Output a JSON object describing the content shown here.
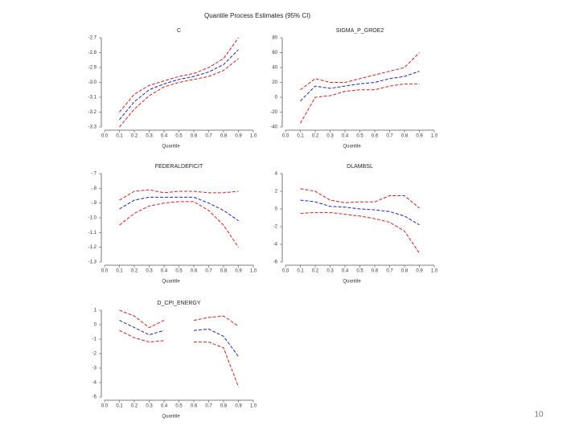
{
  "title": "Quantile Process Estimates (95% CI)",
  "page_number": "10",
  "chart_data": [
    {
      "type": "line",
      "title": "C",
      "xlabel": "Quantile",
      "x": [
        0.1,
        0.2,
        0.3,
        0.4,
        0.5,
        0.6,
        0.7,
        0.8,
        0.9
      ],
      "xlim": [
        0,
        1
      ],
      "xticks": [
        {
          "value": 0,
          "label": "0.0"
        },
        0.1,
        0.2,
        0.3,
        0.4,
        0.5,
        0.6,
        0.7,
        0.8,
        0.9,
        {
          "value": 1,
          "label": "1.0"
        }
      ],
      "ylim": [
        -3.3,
        -2.7
      ],
      "yticks": [
        -3.3,
        -3.2,
        -3.1,
        {
          "value": -3.0,
          "label": "-3.0"
        },
        -2.9,
        -2.8,
        -2.7
      ],
      "series": [
        {
          "color": "#d02020",
          "values": [
            -3.2,
            -3.08,
            -3.02,
            -2.99,
            -2.96,
            -2.94,
            -2.9,
            -2.84,
            -2.7
          ]
        },
        {
          "color": "#2020c0",
          "values": [
            -3.25,
            -3.13,
            -3.05,
            -3.01,
            -2.98,
            -2.96,
            -2.93,
            -2.88,
            -2.78
          ]
        },
        {
          "color": "#d02020",
          "values": [
            -3.3,
            -3.18,
            -3.09,
            -3.03,
            -3.0,
            -2.98,
            -2.96,
            -2.92,
            -2.84
          ]
        }
      ]
    },
    {
      "type": "line",
      "title": "SIGMA_P_GROE2",
      "xlabel": "Quantile",
      "x": [
        0.1,
        0.2,
        0.3,
        0.4,
        0.5,
        0.6,
        0.7,
        0.8,
        0.9
      ],
      "xlim": [
        0,
        1
      ],
      "xticks": [
        {
          "value": 0,
          "label": "0.0"
        },
        0.1,
        0.2,
        0.3,
        0.4,
        0.5,
        0.6,
        0.7,
        0.8,
        0.9,
        {
          "value": 1,
          "label": "1.0"
        }
      ],
      "ylim": [
        -40,
        80
      ],
      "yticks": [
        -40,
        -20,
        0,
        20,
        40,
        60,
        80
      ],
      "series": [
        {
          "color": "#d02020",
          "values": [
            10,
            25,
            20,
            20,
            25,
            30,
            35,
            40,
            60
          ]
        },
        {
          "color": "#2020c0",
          "values": [
            -5,
            15,
            12,
            15,
            18,
            20,
            25,
            28,
            35
          ]
        },
        {
          "color": "#d02020",
          "values": [
            -35,
            0,
            2,
            8,
            10,
            10,
            15,
            18,
            18
          ]
        }
      ]
    },
    {
      "type": "line",
      "title": "FEDERALDEFICIT",
      "xlabel": "Quantile",
      "x": [
        0.1,
        0.2,
        0.3,
        0.4,
        0.5,
        0.6,
        0.7,
        0.8,
        0.9
      ],
      "xlim": [
        0,
        1
      ],
      "xticks": [
        {
          "value": 0,
          "label": "0.0"
        },
        0.1,
        0.2,
        0.3,
        0.4,
        0.5,
        0.6,
        0.7,
        0.8,
        0.9,
        {
          "value": 1,
          "label": "1.0"
        }
      ],
      "ylim": [
        -1.3,
        -0.7
      ],
      "yticks": [
        -1.3,
        -1.2,
        -1.1,
        {
          "value": -1.0,
          "label": "-1.0"
        },
        {
          "value": -0.9,
          "label": "-.9"
        },
        {
          "value": -0.8,
          "label": "-.8"
        },
        {
          "value": -0.7,
          "label": "-.7"
        }
      ],
      "series": [
        {
          "color": "#d02020",
          "values": [
            -0.88,
            -0.82,
            -0.81,
            -0.83,
            -0.82,
            -0.82,
            -0.83,
            -0.83,
            -0.82
          ]
        },
        {
          "color": "#2020c0",
          "values": [
            -0.94,
            -0.88,
            -0.86,
            -0.86,
            -0.86,
            -0.86,
            -0.9,
            -0.95,
            -1.02
          ]
        },
        {
          "color": "#d02020",
          "values": [
            -1.05,
            -0.97,
            -0.92,
            -0.9,
            -0.89,
            -0.89,
            -0.95,
            -1.05,
            -1.2
          ]
        }
      ]
    },
    {
      "type": "line",
      "title": "DLAMBSL",
      "xlabel": "Quantile",
      "x": [
        0.1,
        0.2,
        0.3,
        0.4,
        0.5,
        0.6,
        0.7,
        0.8,
        0.9
      ],
      "xlim": [
        0,
        1
      ],
      "xticks": [
        {
          "value": 0,
          "label": "0.0"
        },
        0.1,
        0.2,
        0.3,
        0.4,
        0.5,
        0.6,
        0.7,
        0.8,
        0.9,
        {
          "value": 1,
          "label": "1.0"
        }
      ],
      "ylim": [
        -6,
        4
      ],
      "yticks": [
        -6,
        -4,
        -2,
        0,
        2,
        4
      ],
      "series": [
        {
          "color": "#d02020",
          "values": [
            2.3,
            2,
            1,
            0.7,
            0.8,
            0.8,
            1.5,
            1.5,
            0.1
          ]
        },
        {
          "color": "#2020c0",
          "values": [
            1,
            0.8,
            0.3,
            0.2,
            0,
            -0.1,
            -0.3,
            -0.8,
            -1.8
          ]
        },
        {
          "color": "#d02020",
          "values": [
            -0.5,
            -0.4,
            -0.4,
            -0.6,
            -0.8,
            -1.1,
            -1.5,
            -2.5,
            -5
          ]
        }
      ]
    },
    {
      "type": "line",
      "title": "D_CPI_ENERGY",
      "xlabel": "Quantile",
      "x": [
        0.1,
        0.2,
        0.3,
        0.4,
        0.5,
        0.6,
        0.7,
        0.8,
        0.9
      ],
      "xlim": [
        0,
        1
      ],
      "xticks": [
        {
          "value": 0,
          "label": "0.0"
        },
        0.1,
        0.2,
        0.3,
        0.4,
        0.5,
        0.6,
        0.7,
        0.8,
        0.9,
        {
          "value": 1,
          "label": "1.0"
        }
      ],
      "ylim": [
        -5,
        1
      ],
      "yticks": [
        -5,
        -4,
        -3,
        -2,
        -1,
        0,
        1
      ],
      "series": [
        {
          "color": "#d02020",
          "values": [
            1,
            0.6,
            -0.2,
            0.3,
            null,
            0.3,
            0.5,
            0.6,
            -0.1
          ]
        },
        {
          "color": "#2020c0",
          "values": [
            0.3,
            -0.2,
            -0.7,
            -0.4,
            null,
            -0.4,
            -0.3,
            -0.8,
            -2.2
          ]
        },
        {
          "color": "#d02020",
          "values": [
            -0.4,
            -0.9,
            -1.2,
            -1.1,
            null,
            -1.2,
            -1.2,
            -1.6,
            -4.3
          ]
        }
      ]
    }
  ]
}
